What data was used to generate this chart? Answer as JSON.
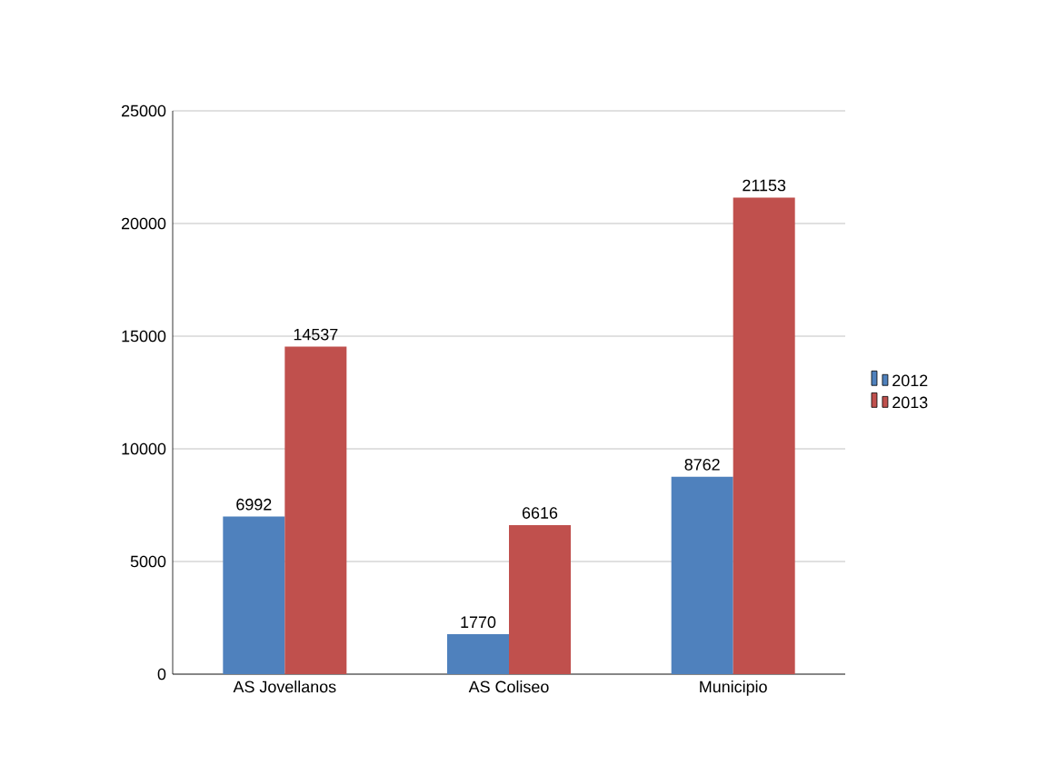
{
  "chart_data": {
    "type": "bar",
    "categories": [
      "AS Jovellanos",
      "AS Coliseo",
      "Municipio"
    ],
    "series": [
      {
        "name": "2012",
        "color": "#4f81bd",
        "values": [
          6992,
          1770,
          8762
        ]
      },
      {
        "name": "2013",
        "color": "#c0504d",
        "values": [
          14537,
          6616,
          21153
        ]
      }
    ],
    "ylim": [
      0,
      25000
    ],
    "yticks": [
      0,
      5000,
      10000,
      15000,
      20000,
      25000
    ],
    "grid": "y",
    "legend": "right",
    "data_labels": true
  }
}
